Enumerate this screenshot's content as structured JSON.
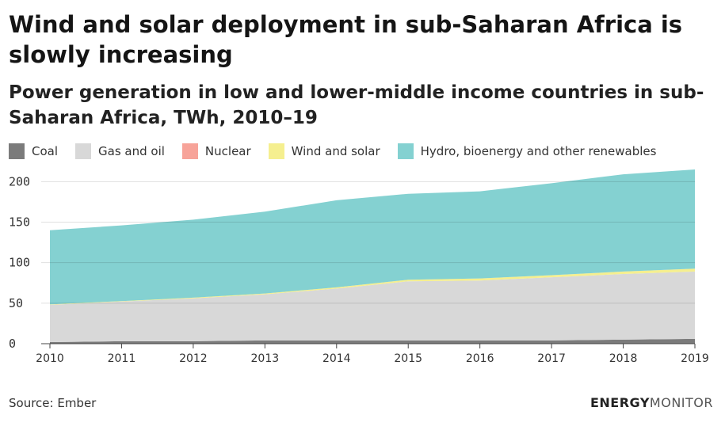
{
  "title": "Wind and solar deployment in sub-Saharan Africa is slowly increasing",
  "subtitle": "Power generation in low and lower-middle income countries in sub-Saharan Africa, TWh, 2010–19",
  "source": "Source: Ember",
  "brand": {
    "bold": "ENERGY",
    "light": "MONITOR"
  },
  "chart_data": {
    "type": "area",
    "stacked": true,
    "x": [
      2010,
      2011,
      2012,
      2013,
      2014,
      2015,
      2016,
      2017,
      2018,
      2019
    ],
    "ylim": [
      0,
      215
    ],
    "yticks": [
      0,
      50,
      100,
      150,
      200
    ],
    "legend_position": "top-left",
    "grid": true,
    "series": [
      {
        "name": "Coal",
        "color": "#7b7b7b",
        "values": [
          2,
          3,
          3,
          4,
          4,
          4,
          4,
          4,
          5,
          6
        ]
      },
      {
        "name": "Gas and oil",
        "color": "#d8d8d8",
        "values": [
          46,
          49,
          53,
          57,
          64,
          73,
          74,
          78,
          81,
          83
        ]
      },
      {
        "name": "Nuclear",
        "color": "#f7a399",
        "values": [
          0,
          0,
          0,
          0,
          0,
          0,
          0,
          0,
          0,
          0
        ]
      },
      {
        "name": "Wind and solar",
        "color": "#f5ef8f",
        "values": [
          0.5,
          0.6,
          0.8,
          1,
          1.5,
          2,
          2.5,
          2.5,
          3,
          3.5
        ]
      },
      {
        "name": "Hydro, bioenergy and other renewables",
        "color": "#84d1d1",
        "values": [
          91.5,
          93.4,
          96.2,
          101,
          107.5,
          106,
          107.5,
          113.5,
          120,
          122.5
        ]
      }
    ]
  }
}
